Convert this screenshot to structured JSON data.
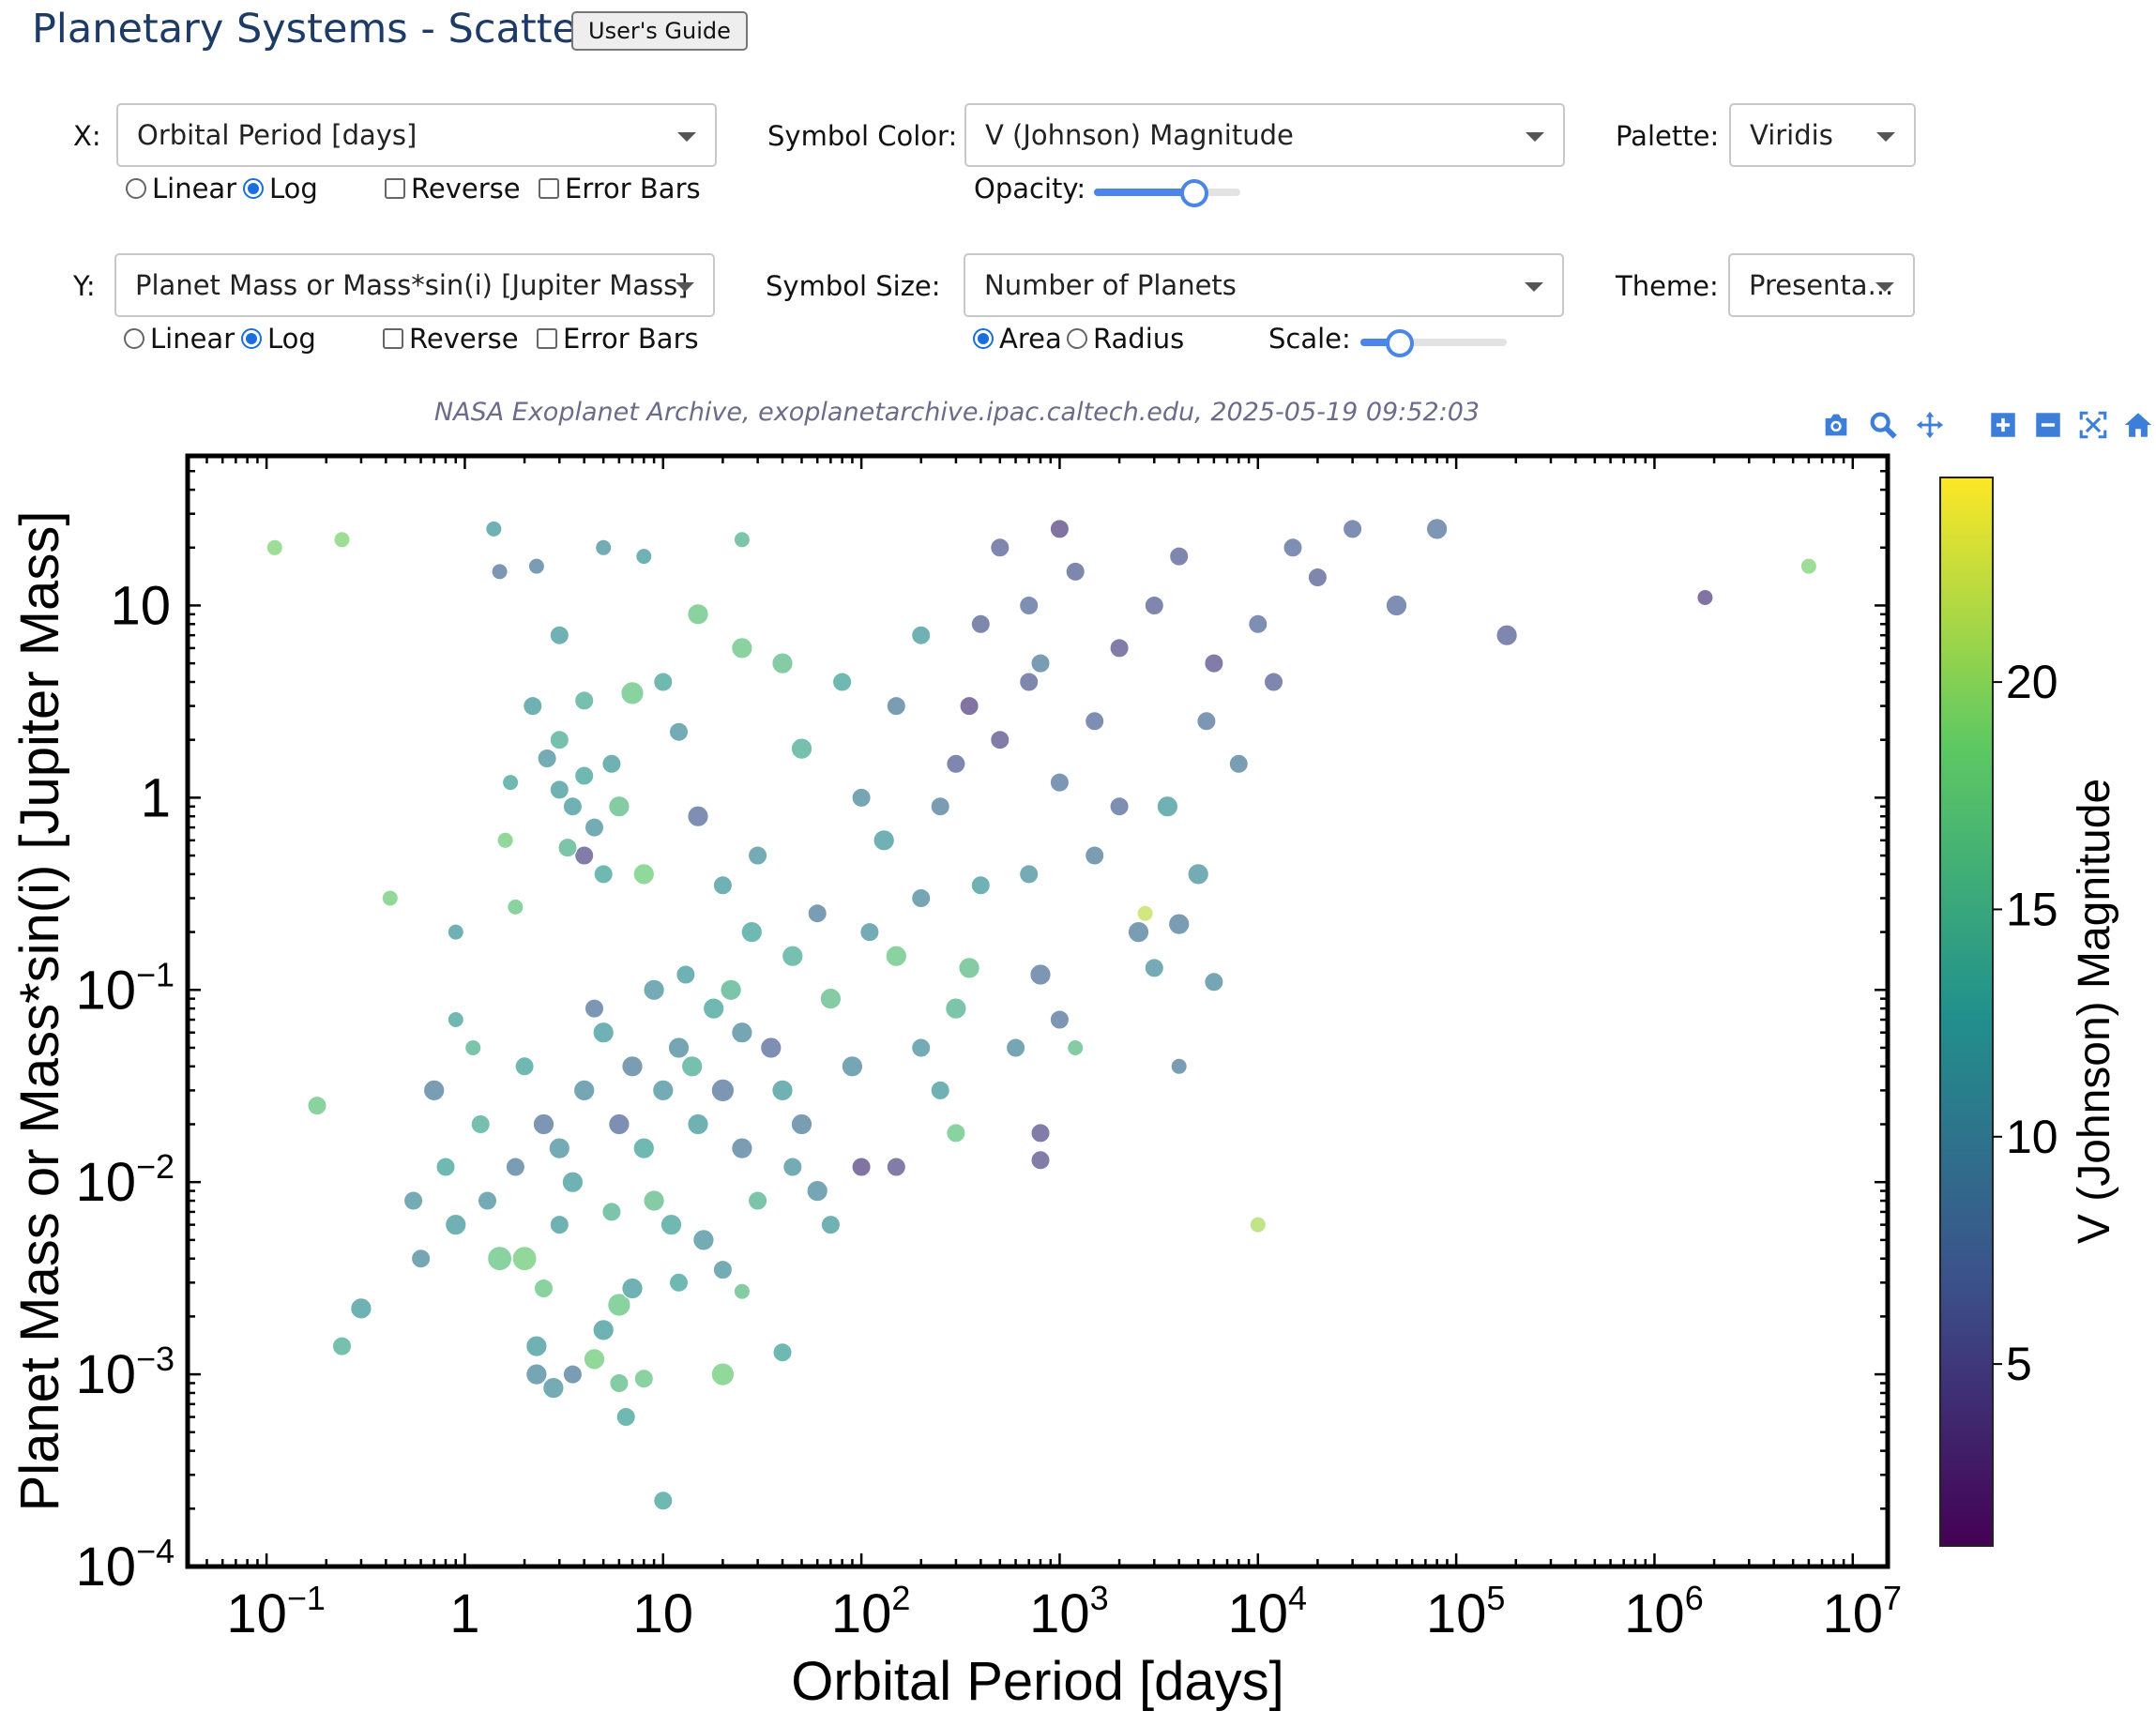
{
  "header": {
    "title": "Planetary Systems - Scatter",
    "guide_button": "User's Guide"
  },
  "controls": {
    "x": {
      "label": "X:",
      "value": "Orbital Period [days]",
      "scale_linear": "Linear",
      "scale_log": "Log",
      "scale_selected": "Log",
      "reverse": "Reverse",
      "error_bars": "Error Bars"
    },
    "y": {
      "label": "Y:",
      "value": "Planet Mass or Mass*sin(i) [Jupiter Mass]",
      "scale_linear": "Linear",
      "scale_log": "Log",
      "scale_selected": "Log",
      "reverse": "Reverse",
      "error_bars": "Error Bars"
    },
    "symbol_color": {
      "label": "Symbol Color:",
      "value": "V (Johnson) Magnitude"
    },
    "opacity": {
      "label": "Opacity:",
      "value": 0.65
    },
    "symbol_size": {
      "label": "Symbol Size:",
      "value": "Number of Planets",
      "area": "Area",
      "radius": "Radius",
      "selected": "Area"
    },
    "scale": {
      "label": "Scale:",
      "value": 0.25
    },
    "palette": {
      "label": "Palette:",
      "value": "Viridis"
    },
    "theme": {
      "label": "Theme:",
      "value": "Presenta..."
    }
  },
  "caption": "NASA Exoplanet Archive, exoplanetarchive.ipac.caltech.edu, 2025-05-19 09:52:03",
  "toolbar": [
    "camera-icon",
    "zoom-icon",
    "pan-icon",
    "zoom-in-icon",
    "zoom-out-icon",
    "autoscale-icon",
    "home-icon"
  ],
  "colors": {
    "accent": "#1a6fdf",
    "title": "#1d3b66"
  },
  "chart_data": {
    "type": "scatter",
    "xlabel": "Orbital Period [days]",
    "ylabel": "Planet Mass or Mass*sin(i) [Jupiter Mass]",
    "xscale": "log",
    "yscale": "log",
    "xlim": [
      0.04,
      15000000
    ],
    "ylim": [
      0.0001,
      60
    ],
    "xticks": [
      {
        "v": 0.1,
        "base": "10",
        "exp": "−1"
      },
      {
        "v": 1,
        "base": "1",
        "exp": ""
      },
      {
        "v": 10,
        "base": "10",
        "exp": ""
      },
      {
        "v": 100,
        "base": "10",
        "exp": "2"
      },
      {
        "v": 1000,
        "base": "10",
        "exp": "3"
      },
      {
        "v": 10000,
        "base": "10",
        "exp": "4"
      },
      {
        "v": 100000,
        "base": "10",
        "exp": "5"
      },
      {
        "v": 1000000,
        "base": "10",
        "exp": "6"
      },
      {
        "v": 10000000,
        "base": "10",
        "exp": "7"
      }
    ],
    "yticks": [
      {
        "v": 0.0001,
        "base": "10",
        "exp": "−4"
      },
      {
        "v": 0.001,
        "base": "10",
        "exp": "−3"
      },
      {
        "v": 0.01,
        "base": "10",
        "exp": "−2"
      },
      {
        "v": 0.1,
        "base": "10",
        "exp": "−1"
      },
      {
        "v": 1,
        "base": "1",
        "exp": ""
      },
      {
        "v": 10,
        "base": "10",
        "exp": ""
      }
    ],
    "colorbar": {
      "label": "V (Johnson) Magnitude",
      "range": [
        1,
        24.5
      ],
      "ticks": [
        5,
        10,
        15,
        20
      ]
    },
    "marker_opacity": 0.65,
    "points": [
      {
        "x": 0.11,
        "y": 20,
        "c": 19,
        "n": 1
      },
      {
        "x": 0.24,
        "y": 22,
        "c": 19,
        "n": 1
      },
      {
        "x": 0.18,
        "y": 0.025,
        "c": 17,
        "n": 2
      },
      {
        "x": 0.42,
        "y": 0.3,
        "c": 18,
        "n": 1
      },
      {
        "x": 0.24,
        "y": 0.0014,
        "c": 14,
        "n": 2
      },
      {
        "x": 0.3,
        "y": 0.0022,
        "c": 12,
        "n": 3
      },
      {
        "x": 0.55,
        "y": 0.008,
        "c": 11,
        "n": 2
      },
      {
        "x": 0.7,
        "y": 0.03,
        "c": 9,
        "n": 3
      },
      {
        "x": 0.8,
        "y": 0.012,
        "c": 13,
        "n": 2
      },
      {
        "x": 0.9,
        "y": 0.006,
        "c": 12,
        "n": 3
      },
      {
        "x": 0.6,
        "y": 0.004,
        "c": 10,
        "n": 2
      },
      {
        "x": 1.2,
        "y": 0.02,
        "c": 14,
        "n": 2
      },
      {
        "x": 1.1,
        "y": 0.05,
        "c": 15,
        "n": 1
      },
      {
        "x": 1.5,
        "y": 0.004,
        "c": 17,
        "n": 5
      },
      {
        "x": 2,
        "y": 0.004,
        "c": 18,
        "n": 5
      },
      {
        "x": 2.5,
        "y": 0.0028,
        "c": 17,
        "n": 2
      },
      {
        "x": 1.3,
        "y": 0.008,
        "c": 11,
        "n": 2
      },
      {
        "x": 0.9,
        "y": 0.2,
        "c": 12,
        "n": 1
      },
      {
        "x": 0.9,
        "y": 0.07,
        "c": 13,
        "n": 1
      },
      {
        "x": 1.4,
        "y": 25,
        "c": 12,
        "n": 1
      },
      {
        "x": 1.5,
        "y": 15,
        "c": 8,
        "n": 1
      },
      {
        "x": 2.3,
        "y": 16,
        "c": 9,
        "n": 1
      },
      {
        "x": 1.6,
        "y": 0.6,
        "c": 18,
        "n": 1
      },
      {
        "x": 1.8,
        "y": 0.27,
        "c": 17,
        "n": 1
      },
      {
        "x": 2.3,
        "y": 0.001,
        "c": 10,
        "n": 3
      },
      {
        "x": 2.3,
        "y": 0.0014,
        "c": 12,
        "n": 3
      },
      {
        "x": 2.8,
        "y": 0.00085,
        "c": 11,
        "n": 3
      },
      {
        "x": 3.5,
        "y": 0.001,
        "c": 9,
        "n": 2
      },
      {
        "x": 4.5,
        "y": 0.0012,
        "c": 18,
        "n": 3
      },
      {
        "x": 5,
        "y": 0.0017,
        "c": 12,
        "n": 3
      },
      {
        "x": 6,
        "y": 0.0009,
        "c": 16,
        "n": 2
      },
      {
        "x": 6.5,
        "y": 0.0006,
        "c": 13,
        "n": 2
      },
      {
        "x": 8,
        "y": 0.00095,
        "c": 17,
        "n": 2
      },
      {
        "x": 10,
        "y": 0.00022,
        "c": 13,
        "n": 2
      },
      {
        "x": 20,
        "y": 0.001,
        "c": 18,
        "n": 4
      },
      {
        "x": 40,
        "y": 0.0013,
        "c": 13,
        "n": 2
      },
      {
        "x": 6,
        "y": 0.0023,
        "c": 17,
        "n": 4
      },
      {
        "x": 7,
        "y": 0.0028,
        "c": 12,
        "n": 3
      },
      {
        "x": 12,
        "y": 0.003,
        "c": 13,
        "n": 2
      },
      {
        "x": 20,
        "y": 0.0035,
        "c": 11,
        "n": 2
      },
      {
        "x": 25,
        "y": 0.0027,
        "c": 16,
        "n": 1
      },
      {
        "x": 3,
        "y": 1.1,
        "c": 12,
        "n": 2
      },
      {
        "x": 3.5,
        "y": 0.9,
        "c": 12,
        "n": 2
      },
      {
        "x": 4,
        "y": 1.3,
        "c": 13,
        "n": 2
      },
      {
        "x": 4.5,
        "y": 0.7,
        "c": 11,
        "n": 2
      },
      {
        "x": 5,
        "y": 0.4,
        "c": 13,
        "n": 2
      },
      {
        "x": 5.5,
        "y": 1.5,
        "c": 12,
        "n": 2
      },
      {
        "x": 4,
        "y": 0.5,
        "c": 5,
        "n": 2
      },
      {
        "x": 3,
        "y": 2,
        "c": 14,
        "n": 2
      },
      {
        "x": 2.6,
        "y": 1.6,
        "c": 11,
        "n": 2
      },
      {
        "x": 3.3,
        "y": 0.55,
        "c": 15,
        "n": 2
      },
      {
        "x": 6,
        "y": 0.9,
        "c": 16,
        "n": 3
      },
      {
        "x": 7,
        "y": 3.5,
        "c": 17,
        "n": 4
      },
      {
        "x": 8,
        "y": 0.4,
        "c": 18,
        "n": 3
      },
      {
        "x": 3,
        "y": 7,
        "c": 12,
        "n": 2
      },
      {
        "x": 4,
        "y": 3.2,
        "c": 14,
        "n": 2
      },
      {
        "x": 15,
        "y": 9,
        "c": 17,
        "n": 3
      },
      {
        "x": 25,
        "y": 6,
        "c": 17,
        "n": 3
      },
      {
        "x": 40,
        "y": 5,
        "c": 16,
        "n": 3
      },
      {
        "x": 50,
        "y": 1.8,
        "c": 14,
        "n": 3
      },
      {
        "x": 80,
        "y": 4,
        "c": 13,
        "n": 2
      },
      {
        "x": 20,
        "y": 0.35,
        "c": 12,
        "n": 2
      },
      {
        "x": 30,
        "y": 0.5,
        "c": 11,
        "n": 2
      },
      {
        "x": 15,
        "y": 0.8,
        "c": 7,
        "n": 3
      },
      {
        "x": 60,
        "y": 0.25,
        "c": 9,
        "n": 2
      },
      {
        "x": 100,
        "y": 1,
        "c": 10,
        "n": 2
      },
      {
        "x": 150,
        "y": 0.15,
        "c": 17,
        "n": 3
      },
      {
        "x": 130,
        "y": 0.6,
        "c": 12,
        "n": 3
      },
      {
        "x": 300,
        "y": 1.5,
        "c": 6,
        "n": 2
      },
      {
        "x": 500,
        "y": 2,
        "c": 5,
        "n": 2
      },
      {
        "x": 700,
        "y": 4,
        "c": 6,
        "n": 2
      },
      {
        "x": 1000,
        "y": 1.2,
        "c": 8,
        "n": 2
      },
      {
        "x": 1500,
        "y": 2.5,
        "c": 7,
        "n": 2
      },
      {
        "x": 2000,
        "y": 6,
        "c": 5,
        "n": 2
      },
      {
        "x": 3000,
        "y": 10,
        "c": 6,
        "n": 2
      },
      {
        "x": 700,
        "y": 10,
        "c": 7,
        "n": 2
      },
      {
        "x": 500,
        "y": 20,
        "c": 6,
        "n": 2
      },
      {
        "x": 1000,
        "y": 25,
        "c": 4,
        "n": 2
      },
      {
        "x": 4000,
        "y": 18,
        "c": 6,
        "n": 2
      },
      {
        "x": 10000,
        "y": 8,
        "c": 7,
        "n": 2
      },
      {
        "x": 20000,
        "y": 14,
        "c": 6,
        "n": 2
      },
      {
        "x": 30000,
        "y": 25,
        "c": 7,
        "n": 2
      },
      {
        "x": 50000,
        "y": 10,
        "c": 7,
        "n": 3
      },
      {
        "x": 80000,
        "y": 25,
        "c": 8,
        "n": 3
      },
      {
        "x": 180000,
        "y": 7,
        "c": 6,
        "n": 3
      },
      {
        "x": 1800000,
        "y": 11,
        "c": 4,
        "n": 1
      },
      {
        "x": 6000000,
        "y": 16,
        "c": 19,
        "n": 1
      },
      {
        "x": 10000,
        "y": 0.006,
        "c": 21,
        "n": 1
      },
      {
        "x": 2700,
        "y": 0.25,
        "c": 22,
        "n": 1
      },
      {
        "x": 3500,
        "y": 0.9,
        "c": 12,
        "n": 3
      },
      {
        "x": 5000,
        "y": 0.4,
        "c": 11,
        "n": 3
      },
      {
        "x": 4000,
        "y": 0.22,
        "c": 9,
        "n": 3
      },
      {
        "x": 2500,
        "y": 0.2,
        "c": 9,
        "n": 3
      },
      {
        "x": 3000,
        "y": 0.13,
        "c": 11,
        "n": 2
      },
      {
        "x": 6000,
        "y": 0.11,
        "c": 10,
        "n": 2
      },
      {
        "x": 800,
        "y": 0.12,
        "c": 8,
        "n": 3
      },
      {
        "x": 1000,
        "y": 0.07,
        "c": 8,
        "n": 2
      },
      {
        "x": 600,
        "y": 0.05,
        "c": 10,
        "n": 2
      },
      {
        "x": 1200,
        "y": 0.05,
        "c": 16,
        "n": 1
      },
      {
        "x": 4000,
        "y": 0.04,
        "c": 9,
        "n": 1
      },
      {
        "x": 800,
        "y": 0.018,
        "c": 5,
        "n": 2
      },
      {
        "x": 800,
        "y": 0.013,
        "c": 5,
        "n": 2
      },
      {
        "x": 300,
        "y": 0.08,
        "c": 15,
        "n": 3
      },
      {
        "x": 350,
        "y": 0.13,
        "c": 16,
        "n": 3
      },
      {
        "x": 300,
        "y": 0.018,
        "c": 17,
        "n": 2
      },
      {
        "x": 250,
        "y": 0.03,
        "c": 12,
        "n": 2
      },
      {
        "x": 200,
        "y": 0.05,
        "c": 11,
        "n": 2
      },
      {
        "x": 100,
        "y": 0.012,
        "c": 4,
        "n": 2
      },
      {
        "x": 150,
        "y": 0.012,
        "c": 5,
        "n": 2
      },
      {
        "x": 70,
        "y": 0.006,
        "c": 12,
        "n": 2
      },
      {
        "x": 60,
        "y": 0.009,
        "c": 10,
        "n": 3
      },
      {
        "x": 50,
        "y": 0.02,
        "c": 9,
        "n": 3
      },
      {
        "x": 30,
        "y": 0.008,
        "c": 15,
        "n": 2
      },
      {
        "x": 25,
        "y": 0.015,
        "c": 9,
        "n": 3
      },
      {
        "x": 20,
        "y": 0.03,
        "c": 8,
        "n": 4
      },
      {
        "x": 15,
        "y": 0.02,
        "c": 12,
        "n": 3
      },
      {
        "x": 12,
        "y": 0.05,
        "c": 10,
        "n": 3
      },
      {
        "x": 10,
        "y": 0.03,
        "c": 11,
        "n": 3
      },
      {
        "x": 8,
        "y": 0.015,
        "c": 13,
        "n": 3
      },
      {
        "x": 7,
        "y": 0.04,
        "c": 9,
        "n": 3
      },
      {
        "x": 6,
        "y": 0.02,
        "c": 7,
        "n": 3
      },
      {
        "x": 5,
        "y": 0.06,
        "c": 12,
        "n": 3
      },
      {
        "x": 4,
        "y": 0.03,
        "c": 10,
        "n": 3
      },
      {
        "x": 3,
        "y": 0.015,
        "c": 11,
        "n": 3
      },
      {
        "x": 3.5,
        "y": 0.01,
        "c": 12,
        "n": 3
      },
      {
        "x": 2.5,
        "y": 0.02,
        "c": 8,
        "n": 3
      },
      {
        "x": 2,
        "y": 0.04,
        "c": 13,
        "n": 2
      },
      {
        "x": 1.8,
        "y": 0.012,
        "c": 9,
        "n": 2
      },
      {
        "x": 4.5,
        "y": 0.08,
        "c": 8,
        "n": 2
      },
      {
        "x": 9,
        "y": 0.1,
        "c": 11,
        "n": 3
      },
      {
        "x": 13,
        "y": 0.12,
        "c": 12,
        "n": 2
      },
      {
        "x": 18,
        "y": 0.08,
        "c": 13,
        "n": 3
      },
      {
        "x": 25,
        "y": 0.06,
        "c": 10,
        "n": 3
      },
      {
        "x": 35,
        "y": 0.05,
        "c": 7,
        "n": 3
      },
      {
        "x": 40,
        "y": 0.03,
        "c": 12,
        "n": 3
      },
      {
        "x": 45,
        "y": 0.012,
        "c": 11,
        "n": 2
      },
      {
        "x": 9,
        "y": 0.008,
        "c": 16,
        "n": 3
      },
      {
        "x": 11,
        "y": 0.006,
        "c": 13,
        "n": 3
      },
      {
        "x": 5.5,
        "y": 0.007,
        "c": 15,
        "n": 2
      },
      {
        "x": 3,
        "y": 0.006,
        "c": 12,
        "n": 2
      },
      {
        "x": 16,
        "y": 0.005,
        "c": 11,
        "n": 3
      },
      {
        "x": 14,
        "y": 0.04,
        "c": 14,
        "n": 3
      },
      {
        "x": 22,
        "y": 0.1,
        "c": 15,
        "n": 3
      },
      {
        "x": 28,
        "y": 0.2,
        "c": 13,
        "n": 3
      },
      {
        "x": 45,
        "y": 0.15,
        "c": 14,
        "n": 3
      },
      {
        "x": 70,
        "y": 0.09,
        "c": 16,
        "n": 3
      },
      {
        "x": 90,
        "y": 0.04,
        "c": 10,
        "n": 3
      },
      {
        "x": 110,
        "y": 0.2,
        "c": 11,
        "n": 2
      },
      {
        "x": 200,
        "y": 0.3,
        "c": 10,
        "n": 2
      },
      {
        "x": 400,
        "y": 0.35,
        "c": 12,
        "n": 2
      },
      {
        "x": 250,
        "y": 0.9,
        "c": 9,
        "n": 2
      },
      {
        "x": 700,
        "y": 0.4,
        "c": 11,
        "n": 2
      },
      {
        "x": 1500,
        "y": 0.5,
        "c": 9,
        "n": 2
      },
      {
        "x": 2000,
        "y": 0.9,
        "c": 7,
        "n": 2
      },
      {
        "x": 5500,
        "y": 2.5,
        "c": 8,
        "n": 2
      },
      {
        "x": 8000,
        "y": 1.5,
        "c": 9,
        "n": 2
      },
      {
        "x": 6000,
        "y": 5,
        "c": 5,
        "n": 2
      },
      {
        "x": 12000,
        "y": 4,
        "c": 6,
        "n": 2
      },
      {
        "x": 800,
        "y": 5,
        "c": 9,
        "n": 2
      },
      {
        "x": 400,
        "y": 8,
        "c": 6,
        "n": 2
      },
      {
        "x": 200,
        "y": 7,
        "c": 12,
        "n": 2
      },
      {
        "x": 150,
        "y": 3,
        "c": 9,
        "n": 2
      },
      {
        "x": 350,
        "y": 3,
        "c": 4,
        "n": 2
      },
      {
        "x": 1200,
        "y": 15,
        "c": 6,
        "n": 2
      },
      {
        "x": 15000,
        "y": 20,
        "c": 7,
        "n": 2
      },
      {
        "x": 5,
        "y": 20,
        "c": 11,
        "n": 1
      },
      {
        "x": 8,
        "y": 18,
        "c": 12,
        "n": 1
      },
      {
        "x": 25,
        "y": 22,
        "c": 15,
        "n": 1
      },
      {
        "x": 10,
        "y": 4,
        "c": 13,
        "n": 2
      },
      {
        "x": 12,
        "y": 2.2,
        "c": 11,
        "n": 2
      },
      {
        "x": 2.2,
        "y": 3,
        "c": 12,
        "n": 2
      },
      {
        "x": 1.7,
        "y": 1.2,
        "c": 13,
        "n": 1
      }
    ]
  }
}
